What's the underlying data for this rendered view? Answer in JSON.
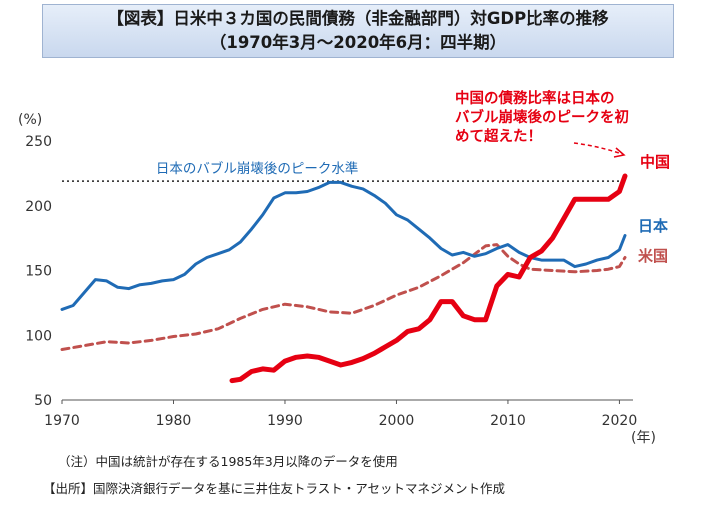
{
  "title": {
    "line1": "【図表】日米中３カ国の民間債務（非金融部門）対GDP比率の推移",
    "line2": "（1970年3月〜2020年6月：四半期）"
  },
  "chart_data": {
    "type": "line",
    "y_unit_label": "(%)",
    "x_unit_label": "(年)",
    "ylim": [
      50,
      250
    ],
    "y_ticks": [
      50,
      100,
      150,
      200,
      250
    ],
    "xlim": [
      1970,
      2020.5
    ],
    "x_ticks": [
      1970,
      1980,
      1990,
      2000,
      2010,
      2020
    ],
    "grid": false,
    "reference_line": {
      "label": "日本のバブル崩壊後のピーク水準",
      "y": 219
    },
    "annotation": {
      "lines": [
        "中国の債務比率は日本の",
        "バブル崩壊後のピークを初",
        "めて超えた！"
      ],
      "color": "#e60012"
    },
    "series": [
      {
        "name": "日本",
        "color": "#1f6bb5",
        "style": "solid",
        "x": [
          1970,
          1971,
          1972,
          1973,
          1974,
          1975,
          1976,
          1977,
          1978,
          1979,
          1980,
          1981,
          1982,
          1983,
          1984,
          1985,
          1986,
          1987,
          1988,
          1989,
          1990,
          1991,
          1992,
          1993,
          1994,
          1995,
          1996,
          1997,
          1998,
          1999,
          2000,
          2001,
          2002,
          2003,
          2004,
          2005,
          2006,
          2007,
          2008,
          2009,
          2010,
          2011,
          2012,
          2013,
          2014,
          2015,
          2016,
          2017,
          2018,
          2019,
          2020,
          2020.5
        ],
        "values": [
          120,
          123,
          133,
          143,
          142,
          137,
          136,
          139,
          140,
          142,
          143,
          147,
          155,
          160,
          163,
          166,
          172,
          182,
          193,
          206,
          210,
          210,
          211,
          214,
          218,
          218,
          215,
          213,
          208,
          202,
          193,
          189,
          182,
          175,
          167,
          162,
          164,
          161,
          163,
          167,
          170,
          164,
          160,
          158,
          158,
          158,
          153,
          155,
          158,
          160,
          166,
          177
        ]
      },
      {
        "name": "米国",
        "color": "#c0504d",
        "style": "dashed",
        "x": [
          1970,
          1972,
          1974,
          1976,
          1978,
          1980,
          1982,
          1984,
          1986,
          1988,
          1990,
          1992,
          1994,
          1996,
          1998,
          2000,
          2002,
          2004,
          2006,
          2008,
          2009,
          2010,
          2011,
          2012,
          2014,
          2016,
          2018,
          2019,
          2020,
          2020.5
        ],
        "values": [
          89,
          92,
          95,
          94,
          96,
          99,
          101,
          105,
          113,
          120,
          124,
          122,
          118,
          117,
          123,
          131,
          137,
          146,
          156,
          169,
          170,
          161,
          155,
          151,
          150,
          149,
          150,
          151,
          153,
          160
        ]
      },
      {
        "name": "中国",
        "color": "#e60012",
        "style": "solid",
        "x": [
          1985.25,
          1986,
          1987,
          1988,
          1989,
          1990,
          1991,
          1992,
          1993,
          1994,
          1995,
          1996,
          1997,
          1998,
          1999,
          2000,
          2001,
          2002,
          2003,
          2004,
          2005,
          2006,
          2007,
          2008,
          2009,
          2010,
          2011,
          2012,
          2013,
          2014,
          2015,
          2016,
          2017,
          2018,
          2019,
          2020,
          2020.5
        ],
        "values": [
          65,
          66,
          72,
          74,
          73,
          80,
          83,
          84,
          83,
          80,
          77,
          79,
          82,
          86,
          91,
          96,
          103,
          105,
          112,
          126,
          126,
          115,
          112,
          112,
          138,
          147,
          145,
          160,
          165,
          175,
          190,
          205,
          205,
          205,
          205,
          211,
          223
        ]
      }
    ]
  },
  "notes": {
    "note1": "（注）中国は統計が存在する1985年3月以降のデータを使用",
    "note2": "【出所】国際決済銀行データを基に三井住友トラスト・アセットマネジメント作成"
  }
}
